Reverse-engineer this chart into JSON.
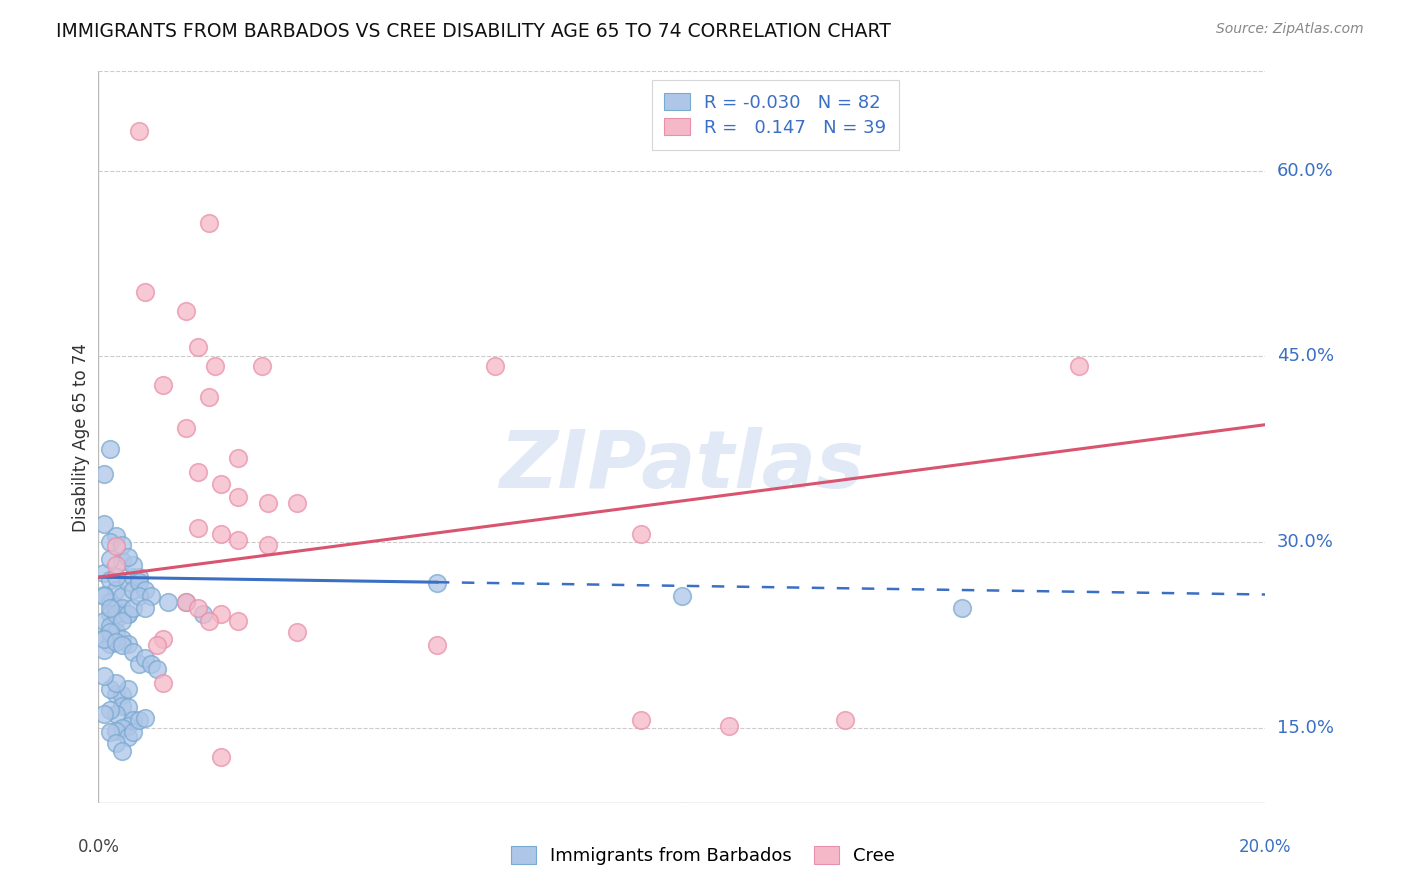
{
  "title": "IMMIGRANTS FROM BARBADOS VS CREE DISABILITY AGE 65 TO 74 CORRELATION CHART",
  "source": "Source: ZipAtlas.com",
  "ylabel": "Disability Age 65 to 74",
  "ytick_labels": [
    "15.0%",
    "30.0%",
    "45.0%",
    "60.0%"
  ],
  "ytick_values": [
    0.15,
    0.3,
    0.45,
    0.6
  ],
  "xlim": [
    0.0,
    0.2
  ],
  "ylim": [
    0.09,
    0.68
  ],
  "legend_blue_label": "Immigrants from Barbados",
  "legend_pink_label": "Cree",
  "legend_R_blue": "-0.030",
  "legend_N_blue": "82",
  "legend_R_pink": "0.147",
  "legend_N_pink": "39",
  "blue_fill": "#aec6e8",
  "blue_edge": "#7aaad0",
  "pink_fill": "#f5b8c8",
  "pink_edge": "#e890aa",
  "trend_blue_color": "#3a6fc4",
  "trend_pink_color": "#d9546e",
  "watermark": "ZIPatlas",
  "blue_dots": [
    [
      0.001,
      0.355
    ],
    [
      0.002,
      0.375
    ],
    [
      0.001,
      0.315
    ],
    [
      0.003,
      0.305
    ],
    [
      0.002,
      0.3
    ],
    [
      0.001,
      0.275
    ],
    [
      0.004,
      0.285
    ],
    [
      0.002,
      0.27
    ],
    [
      0.003,
      0.262
    ],
    [
      0.001,
      0.258
    ],
    [
      0.002,
      0.252
    ],
    [
      0.003,
      0.248
    ],
    [
      0.004,
      0.257
    ],
    [
      0.005,
      0.268
    ],
    [
      0.006,
      0.272
    ],
    [
      0.002,
      0.242
    ],
    [
      0.003,
      0.238
    ],
    [
      0.001,
      0.237
    ],
    [
      0.002,
      0.233
    ],
    [
      0.004,
      0.247
    ],
    [
      0.005,
      0.242
    ],
    [
      0.006,
      0.262
    ],
    [
      0.007,
      0.272
    ],
    [
      0.003,
      0.228
    ],
    [
      0.001,
      0.223
    ],
    [
      0.002,
      0.218
    ],
    [
      0.004,
      0.222
    ],
    [
      0.005,
      0.218
    ],
    [
      0.001,
      0.213
    ],
    [
      0.003,
      0.272
    ],
    [
      0.002,
      0.287
    ],
    [
      0.004,
      0.298
    ],
    [
      0.006,
      0.282
    ],
    [
      0.005,
      0.288
    ],
    [
      0.007,
      0.268
    ],
    [
      0.008,
      0.262
    ],
    [
      0.001,
      0.257
    ],
    [
      0.003,
      0.242
    ],
    [
      0.002,
      0.247
    ],
    [
      0.005,
      0.242
    ],
    [
      0.004,
      0.237
    ],
    [
      0.006,
      0.247
    ],
    [
      0.007,
      0.257
    ],
    [
      0.009,
      0.257
    ],
    [
      0.008,
      0.247
    ],
    [
      0.002,
      0.228
    ],
    [
      0.001,
      0.222
    ],
    [
      0.003,
      0.22
    ],
    [
      0.004,
      0.217
    ],
    [
      0.006,
      0.212
    ],
    [
      0.007,
      0.202
    ],
    [
      0.008,
      0.207
    ],
    [
      0.009,
      0.202
    ],
    [
      0.01,
      0.198
    ],
    [
      0.003,
      0.178
    ],
    [
      0.004,
      0.177
    ],
    [
      0.005,
      0.182
    ],
    [
      0.002,
      0.182
    ],
    [
      0.003,
      0.187
    ],
    [
      0.001,
      0.192
    ],
    [
      0.004,
      0.168
    ],
    [
      0.005,
      0.167
    ],
    [
      0.003,
      0.162
    ],
    [
      0.002,
      0.165
    ],
    [
      0.001,
      0.162
    ],
    [
      0.006,
      0.157
    ],
    [
      0.005,
      0.152
    ],
    [
      0.004,
      0.15
    ],
    [
      0.003,
      0.148
    ],
    [
      0.002,
      0.147
    ],
    [
      0.005,
      0.143
    ],
    [
      0.006,
      0.147
    ],
    [
      0.007,
      0.157
    ],
    [
      0.008,
      0.158
    ],
    [
      0.012,
      0.252
    ],
    [
      0.015,
      0.252
    ],
    [
      0.018,
      0.242
    ],
    [
      0.058,
      0.267
    ],
    [
      0.1,
      0.257
    ],
    [
      0.148,
      0.247
    ],
    [
      0.003,
      0.138
    ],
    [
      0.004,
      0.132
    ]
  ],
  "pink_dots": [
    [
      0.007,
      0.632
    ],
    [
      0.019,
      0.558
    ],
    [
      0.008,
      0.502
    ],
    [
      0.015,
      0.487
    ],
    [
      0.017,
      0.458
    ],
    [
      0.02,
      0.442
    ],
    [
      0.028,
      0.442
    ],
    [
      0.068,
      0.442
    ],
    [
      0.011,
      0.427
    ],
    [
      0.019,
      0.417
    ],
    [
      0.015,
      0.392
    ],
    [
      0.024,
      0.368
    ],
    [
      0.017,
      0.357
    ],
    [
      0.021,
      0.347
    ],
    [
      0.024,
      0.337
    ],
    [
      0.029,
      0.332
    ],
    [
      0.034,
      0.332
    ],
    [
      0.017,
      0.312
    ],
    [
      0.021,
      0.307
    ],
    [
      0.029,
      0.298
    ],
    [
      0.024,
      0.302
    ],
    [
      0.003,
      0.297
    ],
    [
      0.003,
      0.282
    ],
    [
      0.015,
      0.252
    ],
    [
      0.017,
      0.247
    ],
    [
      0.021,
      0.242
    ],
    [
      0.024,
      0.237
    ],
    [
      0.019,
      0.237
    ],
    [
      0.034,
      0.228
    ],
    [
      0.011,
      0.222
    ],
    [
      0.093,
      0.307
    ],
    [
      0.108,
      0.152
    ],
    [
      0.128,
      0.157
    ],
    [
      0.093,
      0.157
    ],
    [
      0.058,
      0.217
    ],
    [
      0.01,
      0.217
    ],
    [
      0.011,
      0.187
    ],
    [
      0.021,
      0.127
    ],
    [
      0.168,
      0.442
    ]
  ],
  "blue_trend_x": [
    0.0,
    0.2
  ],
  "blue_trend_y": [
    0.272,
    0.258
  ],
  "blue_trend_dash_start": 0.058,
  "pink_trend_x": [
    0.0,
    0.2
  ],
  "pink_trend_y": [
    0.272,
    0.395
  ]
}
